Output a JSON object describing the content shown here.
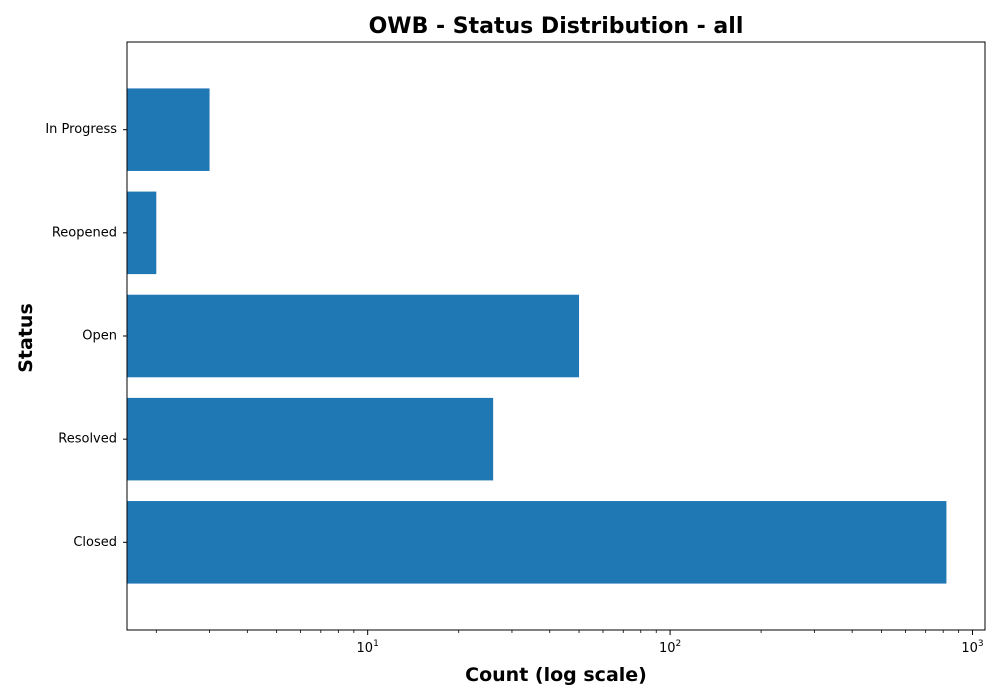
{
  "chart_data": {
    "type": "bar",
    "orientation": "horizontal",
    "title": "OWB - Status Distribution - all",
    "xlabel": "Count (log scale)",
    "ylabel": "Status",
    "xscale": "log",
    "xlim": [
      1.6,
      1100
    ],
    "xticks": [
      {
        "value": 10,
        "base": "10",
        "exp": "1"
      },
      {
        "value": 100,
        "base": "10",
        "exp": "2"
      },
      {
        "value": 1000,
        "base": "10",
        "exp": "3"
      }
    ],
    "categories": [
      "Closed",
      "Resolved",
      "Open",
      "Reopened",
      "In Progress"
    ],
    "values": [
      820,
      26,
      50,
      2,
      3
    ],
    "color": "#1f77b4",
    "grid": false,
    "legend": "none"
  }
}
